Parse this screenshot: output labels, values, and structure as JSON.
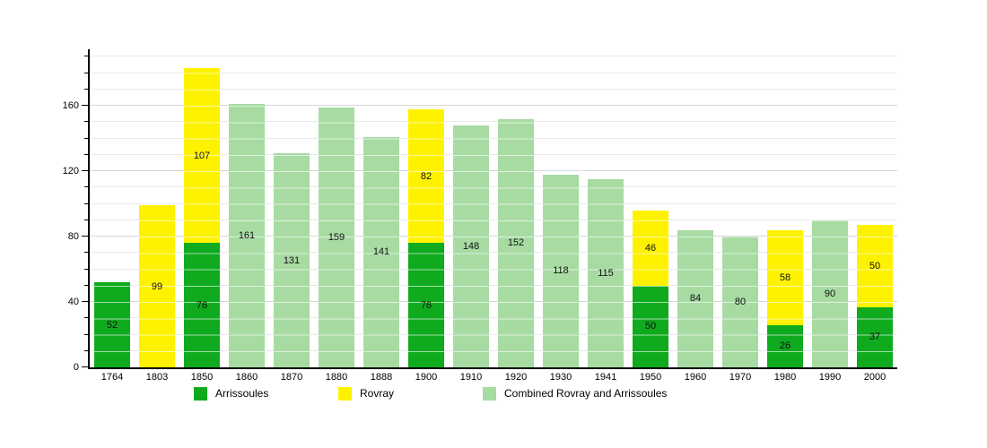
{
  "chart_data": {
    "type": "bar",
    "stacked": true,
    "title": "",
    "xlabel": "",
    "ylabel": "",
    "categories": [
      "1764",
      "1803",
      "1850",
      "1860",
      "1870",
      "1880",
      "1888",
      "1900",
      "1910",
      "1920",
      "1930",
      "1941",
      "1950",
      "1960",
      "1970",
      "1980",
      "1990",
      "2000"
    ],
    "series": [
      {
        "name": "Arrissoules",
        "color": "#0faa1e",
        "values": [
          52,
          null,
          76,
          null,
          null,
          null,
          null,
          76,
          null,
          null,
          null,
          null,
          50,
          null,
          null,
          26,
          null,
          37
        ]
      },
      {
        "name": "Rovray",
        "color": "#fef200",
        "values": [
          null,
          99,
          107,
          null,
          null,
          null,
          null,
          82,
          null,
          null,
          null,
          null,
          46,
          null,
          null,
          58,
          null,
          50
        ]
      },
      {
        "name": "Combined Rovray and Arrissoules",
        "color": "#a7dba2",
        "values": [
          null,
          null,
          null,
          161,
          131,
          159,
          141,
          null,
          148,
          152,
          118,
          115,
          null,
          84,
          80,
          null,
          90,
          null
        ]
      }
    ],
    "ylim": [
      0,
      193
    ],
    "yticks": [
      0,
      40,
      80,
      120,
      160
    ],
    "minor_grid_step": 10,
    "grid": true,
    "value_labels": "inside-center",
    "legend_position": "bottom"
  },
  "colors": {
    "background": "#ffffff",
    "axis": "#000000",
    "grid_minor": "#eaeaea",
    "grid_major": "#d8d8d8",
    "bar_label": "#111111"
  }
}
